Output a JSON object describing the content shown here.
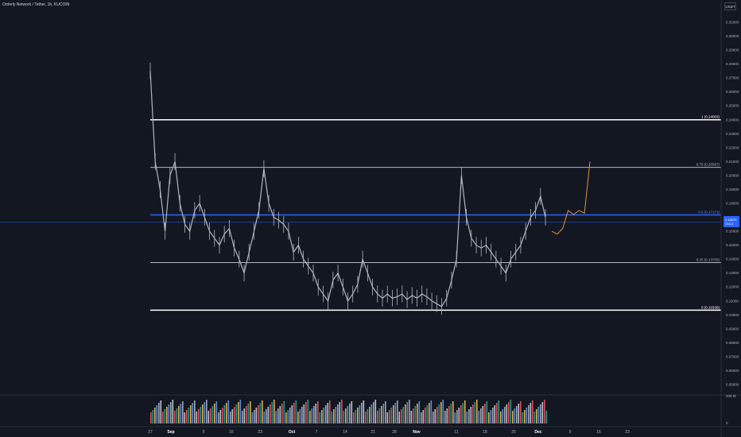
{
  "header": {
    "title": "Orderly Network / Tether, 1h, KUCOIN",
    "currency": "USDT"
  },
  "colors": {
    "background": "#131722",
    "candles": "#b2b5be",
    "fib_line": "#ffffff",
    "fib_mid": "#2962ff",
    "current_price_line": "#2962ff",
    "projection": "#e0913a",
    "grid_text": "#b2b5be"
  },
  "price_badge": {
    "line1": "0.16670",
    "line2": "03:13"
  },
  "chart_data": {
    "type": "line",
    "title": "Orderly Network / Tether, 1h, KUCOIN",
    "ylim": [
      0.04,
      0.32
    ],
    "y_ticks": [
      "0.31000",
      "0.30000",
      "0.29000",
      "0.28000",
      "0.27000",
      "0.26000",
      "0.25000",
      "0.24000",
      "0.23000",
      "0.22000",
      "0.21000",
      "0.20000",
      "0.19000",
      "0.18000",
      "0.17000",
      "0.16000",
      "0.15000",
      "0.14000",
      "0.13000",
      "0.12000",
      "0.11000",
      "0.10000",
      "0.09000",
      "0.08000",
      "0.07000",
      "0.06000",
      "0.05000"
    ],
    "x_ticks": [
      {
        "label": "27",
        "bold": false
      },
      {
        "label": "Sep",
        "bold": true
      },
      {
        "label": "9",
        "bold": false
      },
      {
        "label": "16",
        "bold": false
      },
      {
        "label": "23",
        "bold": false
      },
      {
        "label": "Oct",
        "bold": true
      },
      {
        "label": "7",
        "bold": false
      },
      {
        "label": "14",
        "bold": false
      },
      {
        "label": "21",
        "bold": false
      },
      {
        "label": "28",
        "bold": false
      },
      {
        "label": "Nov",
        "bold": true
      },
      {
        "label": "11",
        "bold": false
      },
      {
        "label": "18",
        "bold": false
      },
      {
        "label": "25",
        "bold": false
      },
      {
        "label": "Dec",
        "bold": true
      },
      {
        "label": "9",
        "bold": false
      },
      {
        "label": "16",
        "bold": false
      },
      {
        "label": "23",
        "bold": false
      }
    ],
    "fib_levels": [
      {
        "ratio": 1,
        "label": "1 (0.24003)",
        "price": 0.24003
      },
      {
        "ratio": 0.75,
        "label": "0.75 (0.20587)",
        "price": 0.20587
      },
      {
        "ratio": 0.5,
        "label": "0.5 (0.17171)",
        "price": 0.17171
      },
      {
        "ratio": 0.25,
        "label": "0.25 (0.13755)",
        "price": 0.13755
      },
      {
        "ratio": 0,
        "label": "0 (0.10339)",
        "price": 0.10339
      }
    ],
    "current_price": 0.1667,
    "price_series": [
      0.275,
      0.21,
      0.19,
      0.16,
      0.2,
      0.21,
      0.18,
      0.165,
      0.16,
      0.175,
      0.18,
      0.17,
      0.16,
      0.155,
      0.15,
      0.158,
      0.162,
      0.148,
      0.14,
      0.13,
      0.145,
      0.16,
      0.175,
      0.205,
      0.18,
      0.17,
      0.168,
      0.165,
      0.16,
      0.145,
      0.15,
      0.14,
      0.135,
      0.13,
      0.12,
      0.115,
      0.11,
      0.125,
      0.13,
      0.12,
      0.11,
      0.115,
      0.122,
      0.14,
      0.13,
      0.12,
      0.115,
      0.112,
      0.115,
      0.112,
      0.113,
      0.115,
      0.111,
      0.114,
      0.112,
      0.115,
      0.113,
      0.11,
      0.108,
      0.106,
      0.112,
      0.125,
      0.14,
      0.2,
      0.17,
      0.155,
      0.15,
      0.148,
      0.15,
      0.145,
      0.14,
      0.135,
      0.13,
      0.14,
      0.145,
      0.15,
      0.16,
      0.17,
      0.175,
      0.185,
      0.17
    ],
    "projection": [
      0.16,
      0.158,
      0.162,
      0.175,
      0.172,
      0.175,
      0.173,
      0.21
    ]
  },
  "volume_axis": {
    "top_label": "200 M",
    "bottom_label": "0"
  }
}
